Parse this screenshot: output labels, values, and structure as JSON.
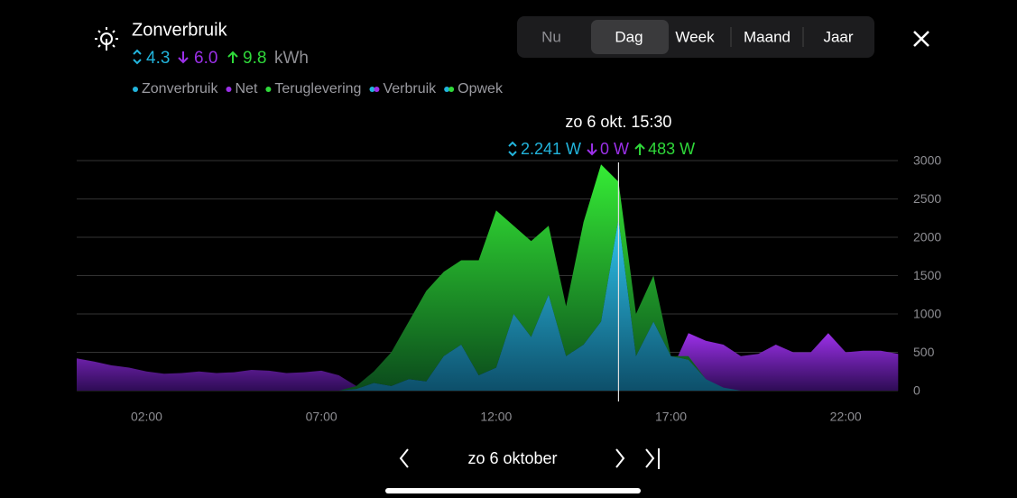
{
  "header": {
    "title": "Zonverbruik",
    "summary": [
      "4.3",
      "6.0",
      "9.8"
    ],
    "unit": "kWh"
  },
  "tabs": [
    "Nu",
    "Dag",
    "Week",
    "Maand",
    "Jaar"
  ],
  "selected_tab": "Dag",
  "legend_extra": [
    "Verbruik",
    "Opwek"
  ],
  "tooltip": {
    "title": "zo 6 okt. 15:30",
    "values": [
      "2.241 W",
      "0 W",
      "483 W"
    ]
  },
  "nav": {
    "date": "zo 6 oktober"
  },
  "chart_data": {
    "type": "area",
    "stacked": true,
    "x": [
      0,
      0.5,
      1,
      1.5,
      2,
      2.5,
      3,
      3.5,
      4,
      4.5,
      5,
      5.5,
      6,
      6.5,
      7,
      7.5,
      8,
      8.5,
      9,
      9.5,
      10,
      10.5,
      11,
      11.5,
      12,
      12.5,
      13,
      13.5,
      14,
      14.5,
      15,
      15.5,
      16,
      16.5,
      17,
      17.5,
      18,
      18.5,
      19,
      19.5,
      20,
      20.5,
      21,
      21.5,
      22,
      22.5,
      23,
      23.5
    ],
    "xlim": [
      0,
      23.75
    ],
    "xticks": [
      {
        "value": 2,
        "label": "02:00"
      },
      {
        "value": 7,
        "label": "07:00"
      },
      {
        "value": 12,
        "label": "12:00"
      },
      {
        "value": 17,
        "label": "17:00"
      },
      {
        "value": 22,
        "label": "22:00"
      }
    ],
    "ylim": [
      0,
      3000
    ],
    "yticks": [
      0,
      500,
      1000,
      1500,
      2000,
      2500,
      3000
    ],
    "grid": true,
    "cursor_x": 15.5,
    "series": [
      {
        "name": "Zonverbruik",
        "color": "#22b4dc",
        "values": [
          0,
          0,
          0,
          0,
          0,
          0,
          0,
          0,
          0,
          0,
          0,
          0,
          0,
          0,
          0,
          0,
          20,
          100,
          60,
          150,
          120,
          450,
          600,
          200,
          300,
          1000,
          700,
          1250,
          450,
          600,
          900,
          2241,
          450,
          900,
          450,
          400,
          150,
          40,
          0,
          0,
          0,
          0,
          0,
          0,
          0,
          0,
          0,
          0
        ]
      },
      {
        "name": "Net",
        "color": "#9b30e8",
        "values": [
          420,
          380,
          330,
          300,
          250,
          220,
          230,
          250,
          230,
          240,
          270,
          260,
          230,
          240,
          260,
          200,
          60,
          0,
          0,
          0,
          0,
          0,
          0,
          0,
          0,
          0,
          0,
          0,
          0,
          0,
          0,
          0,
          0,
          0,
          250,
          750,
          650,
          600,
          450,
          480,
          600,
          500,
          500,
          750,
          500,
          520,
          520,
          480
        ]
      },
      {
        "name": "Teruglevering",
        "color": "#2fd93a",
        "values": [
          0,
          0,
          0,
          0,
          0,
          0,
          0,
          0,
          0,
          0,
          0,
          0,
          0,
          0,
          0,
          0,
          40,
          150,
          440,
          750,
          1180,
          1100,
          1100,
          1500,
          2050,
          1150,
          1250,
          900,
          650,
          1600,
          2050,
          483,
          550,
          600,
          0,
          50,
          0,
          0,
          0,
          0,
          0,
          0,
          0,
          0,
          0,
          0,
          0,
          0
        ]
      }
    ]
  }
}
